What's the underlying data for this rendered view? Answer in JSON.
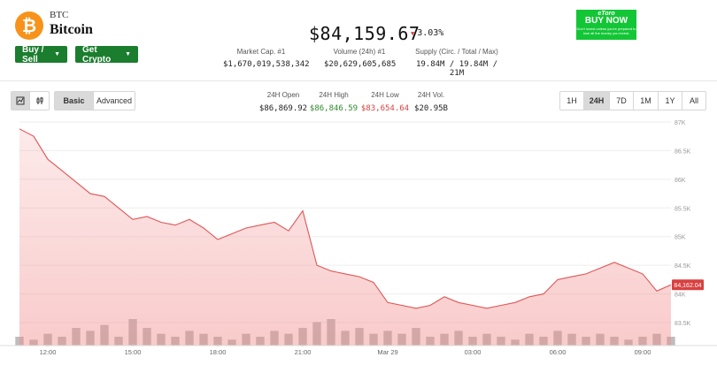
{
  "coin": {
    "logo_glyph": "₿",
    "logo_color": "#f7931a",
    "symbol": "BTC",
    "name": "Bitcoin"
  },
  "buttons": {
    "buy_sell": "Buy / Sell",
    "get_crypto": "Get Crypto",
    "caret_icon": "▼"
  },
  "price": {
    "value": "$84,159.67",
    "change_arrow": "▼",
    "change": "3.03%"
  },
  "stats": {
    "market_cap": {
      "label": "Market Cap. #1",
      "value": "$1,670,019,538,342"
    },
    "volume": {
      "label": "Volume (24h) #1",
      "value": "$20,629,605,685"
    },
    "supply": {
      "label": "Supply (Circ. / Total / Max)",
      "value": "19.84M / 19.84M / 21M"
    }
  },
  "ad": {
    "brand": "eToro",
    "cta": "BUY NOW",
    "fine_print": "Don't invest unless you're prepared to lose all the money you invest."
  },
  "chart_controls": {
    "view_modes": [
      "Basic",
      "Advanced"
    ],
    "active_view": "Basic",
    "ranges": [
      "1H",
      "24H",
      "7D",
      "1M",
      "1Y",
      "All"
    ],
    "active_range": "24H"
  },
  "ohlc": {
    "open": {
      "label": "24H Open",
      "value": "$86,869.92"
    },
    "high": {
      "label": "24H High",
      "value": "$86,846.59"
    },
    "low": {
      "label": "24H Low",
      "value": "$83,654.64"
    },
    "vol": {
      "label": "24H Vol.",
      "value": "$20.95B"
    }
  },
  "colors": {
    "up": "#2e8b2e",
    "down": "#d94040",
    "line": "#e05555",
    "volume_bar": "#bdbdbd"
  },
  "chart_data": {
    "type": "line",
    "series": [
      {
        "x": [
          "11:00",
          "11:30",
          "12:00",
          "12:30",
          "13:00",
          "13:30",
          "14:00",
          "14:30",
          "15:00",
          "15:30",
          "16:00",
          "16:30",
          "17:00",
          "17:30",
          "18:00",
          "18:30",
          "19:00",
          "19:30",
          "20:00",
          "20:30",
          "21:00",
          "21:30",
          "22:00",
          "22:30",
          "23:00",
          "23:30",
          "00:00",
          "00:30",
          "01:00",
          "01:30",
          "02:00",
          "02:30",
          "03:00",
          "03:30",
          "04:00",
          "04:30",
          "05:00",
          "05:30",
          "06:00",
          "06:30",
          "07:00",
          "07:30",
          "08:00",
          "08:30",
          "09:00",
          "09:30",
          "10:00"
        ],
        "values": [
          86880,
          86750,
          86350,
          86150,
          85950,
          85750,
          85700,
          85500,
          85300,
          85350,
          85250,
          85200,
          85300,
          85150,
          84950,
          85050,
          85150,
          85200,
          85250,
          85100,
          85450,
          84500,
          84400,
          84350,
          84300,
          84200,
          83850,
          83800,
          83750,
          83800,
          83950,
          83850,
          83800,
          83750,
          83800,
          83850,
          83950,
          84000,
          84250,
          84300,
          84350,
          84450,
          84550,
          84450,
          84350,
          84050,
          84160
        ]
      }
    ],
    "volume": [
      3,
      2,
      4,
      3,
      6,
      5,
      7,
      3,
      9,
      6,
      4,
      3,
      5,
      4,
      3,
      2,
      4,
      3,
      5,
      4,
      6,
      8,
      9,
      5,
      6,
      4,
      5,
      4,
      6,
      3,
      4,
      5,
      3,
      4,
      3,
      2,
      4,
      3,
      5,
      4,
      3,
      4,
      3,
      2,
      3,
      4,
      3
    ],
    "x_ticks": [
      "12:00",
      "15:00",
      "18:00",
      "21:00",
      "Mar 29",
      "03:00",
      "06:00",
      "09:00"
    ],
    "y_ticks": [
      "83.5K",
      "84K",
      "84.5K",
      "85K",
      "85.5K",
      "86K",
      "86.5K",
      "87K"
    ],
    "ylim": [
      83500,
      87000
    ],
    "last_value_label": "84,162.04",
    "grid": true
  }
}
